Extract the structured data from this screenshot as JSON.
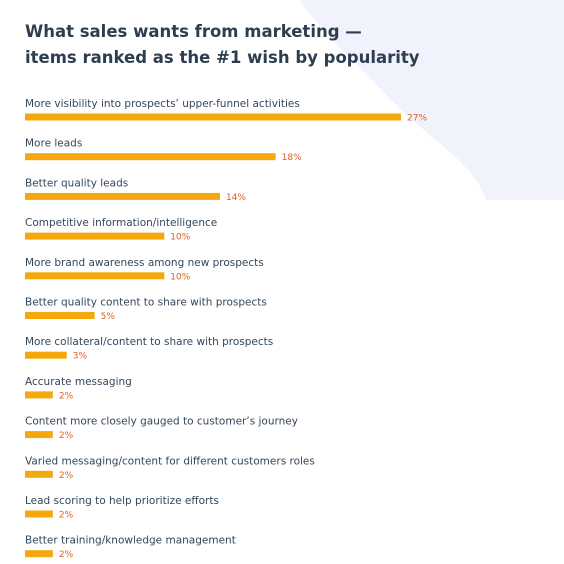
{
  "title_lines": [
    "What sales wants from marketing —",
    "items ranked as the #1 wish by popularity"
  ],
  "colors": {
    "bar": "#f5a80e",
    "value_label": "#e0601f",
    "category_label": "#33475b",
    "title": "#2d3e50",
    "background_accent": "#f1f3fc"
  },
  "chart_data": {
    "type": "bar",
    "orientation": "horizontal",
    "title": "What sales wants from marketing — items ranked as the #1 wish by popularity",
    "xlabel": "",
    "ylabel": "",
    "xlim": [
      0,
      27
    ],
    "grid": false,
    "legend": "none",
    "value_suffix": "%",
    "categories": [
      "More visibility into prospects’ upper-funnel activities",
      "More leads",
      "Better quality leads",
      "Competitive information/intelligence",
      "More brand awareness among new prospects",
      "Better quality content to share with prospects",
      "More collateral/content to share with prospects",
      "Accurate messaging",
      "Content more closely gauged to customer’s journey",
      "Varied messaging/content for different customers roles",
      "Lead scoring to help prioritize efforts",
      "Better training/knowledge management"
    ],
    "values": [
      27,
      18,
      14,
      10,
      10,
      5,
      3,
      2,
      2,
      2,
      2,
      2
    ]
  }
}
